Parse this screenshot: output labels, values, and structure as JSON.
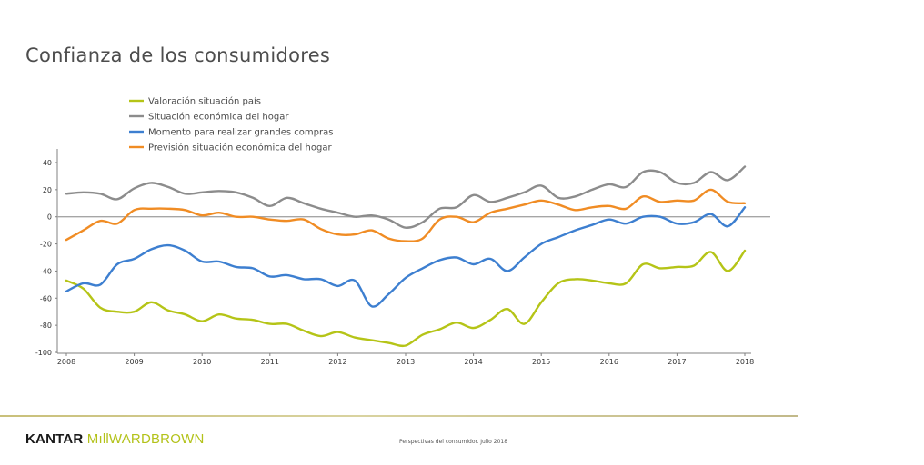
{
  "title": "Confianza de los consumidores",
  "footer": {
    "brand_part1": "KANTAR ",
    "brand_part2": "MıllWARDBROWN",
    "note": "Perspectivas del consumidor. Julio 2018"
  },
  "colors": {
    "axis_zero": "#a6a6a6",
    "footer_rule": "#c9c07a"
  },
  "chart_data": {
    "type": "line",
    "title": "",
    "xlabel": "",
    "ylabel": "",
    "xlim": [
      2008,
      2018
    ],
    "ylim": [
      -100,
      50
    ],
    "xticks": [
      2008,
      2009,
      2010,
      2011,
      2012,
      2013,
      2014,
      2015,
      2016,
      2017,
      2018
    ],
    "yticks": [
      40,
      20,
      0,
      -20,
      -40,
      -60,
      -80,
      -100
    ],
    "legend_position": "top-left",
    "grid": false,
    "series": [
      {
        "name": "Valoración situación país",
        "color": "#b5c417",
        "x": [
          2008,
          2008.25,
          2008.5,
          2008.75,
          2009,
          2009.25,
          2009.5,
          2009.75,
          2010,
          2010.25,
          2010.5,
          2010.75,
          2011,
          2011.25,
          2011.5,
          2011.75,
          2012,
          2012.25,
          2012.5,
          2012.75,
          2013,
          2013.25,
          2013.5,
          2013.75,
          2014,
          2014.25,
          2014.5,
          2014.75,
          2015,
          2015.25,
          2015.5,
          2015.75,
          2016,
          2016.25,
          2016.5,
          2016.75,
          2017,
          2017.25,
          2017.5,
          2017.75,
          2018
        ],
        "y": [
          -47,
          -53,
          -67,
          -70,
          -70,
          -63,
          -69,
          -72,
          -77,
          -72,
          -75,
          -76,
          -79,
          -79,
          -84,
          -88,
          -85,
          -89,
          -91,
          -93,
          -95,
          -87,
          -83,
          -78,
          -82,
          -76,
          -68,
          -79,
          -63,
          -49,
          -46,
          -47,
          -49,
          -49,
          -35,
          -38,
          -37,
          -36,
          -26,
          -40,
          -25
        ]
      },
      {
        "name": "Situación económica del hogar",
        "color": "#8c8c8c",
        "x": [
          2008,
          2008.25,
          2008.5,
          2008.75,
          2009,
          2009.25,
          2009.5,
          2009.75,
          2010,
          2010.25,
          2010.5,
          2010.75,
          2011,
          2011.25,
          2011.5,
          2011.75,
          2012,
          2012.25,
          2012.5,
          2012.75,
          2013,
          2013.25,
          2013.5,
          2013.75,
          2014,
          2014.25,
          2014.5,
          2014.75,
          2015,
          2015.25,
          2015.5,
          2015.75,
          2016,
          2016.25,
          2016.5,
          2016.75,
          2017,
          2017.25,
          2017.5,
          2017.75,
          2018
        ],
        "y": [
          17,
          18,
          17,
          13,
          21,
          25,
          22,
          17,
          18,
          19,
          18,
          14,
          8,
          14,
          10,
          6,
          3,
          0,
          1,
          -2,
          -8,
          -4,
          6,
          7,
          16,
          11,
          14,
          18,
          23,
          14,
          15,
          20,
          24,
          22,
          33,
          33,
          25,
          25,
          33,
          27,
          37
        ]
      },
      {
        "name": "Momento para realizar grandes compras",
        "color": "#3d7fd0",
        "x": [
          2008,
          2008.25,
          2008.5,
          2008.75,
          2009,
          2009.25,
          2009.5,
          2009.75,
          2010,
          2010.25,
          2010.5,
          2010.75,
          2011,
          2011.25,
          2011.5,
          2011.75,
          2012,
          2012.25,
          2012.5,
          2012.75,
          2013,
          2013.25,
          2013.5,
          2013.75,
          2014,
          2014.25,
          2014.5,
          2014.75,
          2015,
          2015.25,
          2015.5,
          2015.75,
          2016,
          2016.25,
          2016.5,
          2016.75,
          2017,
          2017.25,
          2017.5,
          2017.75,
          2018
        ],
        "y": [
          -55,
          -49,
          -50,
          -35,
          -31,
          -24,
          -21,
          -25,
          -33,
          -33,
          -37,
          -38,
          -44,
          -43,
          -46,
          -46,
          -51,
          -47,
          -66,
          -57,
          -45,
          -38,
          -32,
          -30,
          -35,
          -31,
          -40,
          -30,
          -20,
          -15,
          -10,
          -6,
          -2,
          -5,
          0,
          0,
          -5,
          -4,
          2,
          -7,
          7
        ]
      },
      {
        "name": "Previsión situación económica del hogar",
        "color": "#f08c24",
        "x": [
          2008,
          2008.25,
          2008.5,
          2008.75,
          2009,
          2009.25,
          2009.5,
          2009.75,
          2010,
          2010.25,
          2010.5,
          2010.75,
          2011,
          2011.25,
          2011.5,
          2011.75,
          2012,
          2012.25,
          2012.5,
          2012.75,
          2013,
          2013.25,
          2013.5,
          2013.75,
          2014,
          2014.25,
          2014.5,
          2014.75,
          2015,
          2015.25,
          2015.5,
          2015.75,
          2016,
          2016.25,
          2016.5,
          2016.75,
          2017,
          2017.25,
          2017.5,
          2017.75,
          2018
        ],
        "y": [
          -17,
          -10,
          -3,
          -5,
          5,
          6,
          6,
          5,
          1,
          3,
          0,
          0,
          -2,
          -3,
          -2,
          -9,
          -13,
          -13,
          -10,
          -16,
          -18,
          -16,
          -2,
          0,
          -4,
          3,
          6,
          9,
          12,
          9,
          5,
          7,
          8,
          6,
          15,
          11,
          12,
          12,
          20,
          11,
          10
        ]
      }
    ]
  }
}
